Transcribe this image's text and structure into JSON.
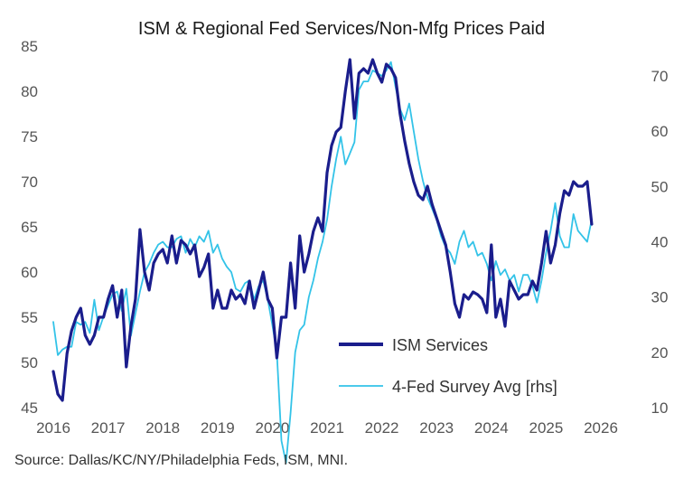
{
  "chart_data": {
    "type": "line",
    "title": "ISM & Regional Fed Services/Non-Mfg Prices Paid",
    "source": "Source: Dallas/KC/NY/Philadelphia Feds, ISM, MNI.",
    "x_ticks": [
      "2016",
      "2017",
      "2018",
      "2019",
      "2020",
      "2021",
      "2022",
      "2023",
      "2024",
      "2025",
      "2026"
    ],
    "xlim": [
      2016,
      2026
    ],
    "y_left": {
      "ticks": [
        "45",
        "50",
        "55",
        "60",
        "65",
        "70",
        "75",
        "80",
        "85"
      ],
      "ylim": [
        45,
        85
      ]
    },
    "y_right": {
      "ticks": [
        "10",
        "20",
        "30",
        "40",
        "50",
        "60",
        "70"
      ],
      "ylim": [
        10,
        75
      ]
    },
    "legend": [
      "ISM Services",
      "4-Fed Survey Avg [rhs]"
    ],
    "colors": {
      "ism": "#1a1d8c",
      "fed": "#33c3e8"
    },
    "series": [
      {
        "name": "ISM Services",
        "axis": "left",
        "x": [
          2016.0,
          2016.083,
          2016.167,
          2016.25,
          2016.333,
          2016.417,
          2016.5,
          2016.583,
          2016.667,
          2016.75,
          2016.833,
          2016.917,
          2017.0,
          2017.083,
          2017.167,
          2017.25,
          2017.333,
          2017.417,
          2017.5,
          2017.583,
          2017.667,
          2017.75,
          2017.833,
          2017.917,
          2018.0,
          2018.083,
          2018.167,
          2018.25,
          2018.333,
          2018.417,
          2018.5,
          2018.583,
          2018.667,
          2018.75,
          2018.833,
          2018.917,
          2019.0,
          2019.083,
          2019.167,
          2019.25,
          2019.333,
          2019.417,
          2019.5,
          2019.583,
          2019.667,
          2019.75,
          2019.833,
          2019.917,
          2020.0,
          2020.083,
          2020.167,
          2020.25,
          2020.333,
          2020.417,
          2020.5,
          2020.583,
          2020.667,
          2020.75,
          2020.833,
          2020.917,
          2021.0,
          2021.083,
          2021.167,
          2021.25,
          2021.333,
          2021.417,
          2021.5,
          2021.583,
          2021.667,
          2021.75,
          2021.833,
          2021.917,
          2022.0,
          2022.083,
          2022.167,
          2022.25,
          2022.333,
          2022.417,
          2022.5,
          2022.583,
          2022.667,
          2022.75,
          2022.833,
          2022.917,
          2023.0,
          2023.083,
          2023.167,
          2023.25,
          2023.333,
          2023.417,
          2023.5,
          2023.583,
          2023.667,
          2023.75,
          2023.833,
          2023.917,
          2024.0,
          2024.083,
          2024.167,
          2024.25,
          2024.333,
          2024.417,
          2024.5,
          2024.583,
          2024.667,
          2024.75,
          2024.833,
          2024.917,
          2025.0,
          2025.083,
          2025.167,
          2025.25,
          2025.333,
          2025.417,
          2025.5,
          2025.583,
          2025.667,
          2025.75,
          2025.833
        ],
        "values": [
          49.0,
          46.5,
          45.8,
          51.0,
          53.5,
          55.0,
          56.0,
          53.0,
          52.0,
          53.0,
          55.0,
          55.0,
          57.0,
          58.5,
          55.0,
          58.0,
          49.5,
          54.0,
          57.0,
          64.7,
          60.0,
          58.0,
          61.0,
          62.0,
          62.5,
          61.0,
          64.0,
          61.0,
          63.5,
          63.0,
          62.0,
          63.0,
          59.5,
          60.5,
          62.0,
          56.0,
          58.0,
          56.0,
          56.0,
          58.0,
          57.0,
          57.5,
          56.5,
          59.0,
          56.0,
          58.0,
          60.0,
          57.0,
          56.0,
          50.5,
          55.0,
          55.0,
          61.0,
          56.0,
          64.0,
          60.0,
          62.0,
          64.5,
          66.0,
          64.5,
          71.0,
          74.0,
          75.5,
          76.0,
          80.0,
          83.5,
          77.0,
          82.0,
          82.5,
          82.0,
          83.5,
          82.0,
          81.0,
          83.0,
          82.5,
          81.5,
          77.5,
          74.5,
          72.0,
          70.0,
          68.5,
          68.0,
          69.5,
          67.5,
          66.0,
          64.5,
          63.0,
          60.0,
          56.5,
          55.0,
          57.5,
          57.0,
          57.8,
          57.5,
          57.0,
          55.5,
          63.0,
          55.0,
          57.0,
          54.0,
          59.0,
          58.0,
          57.0,
          57.5,
          57.5,
          59.0,
          58.0,
          61.0,
          64.5,
          61.0,
          63.0,
          66.5,
          69.0,
          68.5,
          70.0,
          69.5,
          69.5,
          70.0,
          65.3
        ]
      },
      {
        "name": "4-Fed Survey Avg [rhs]",
        "axis": "right",
        "x": [
          2016.0,
          2016.083,
          2016.167,
          2016.25,
          2016.333,
          2016.417,
          2016.5,
          2016.583,
          2016.667,
          2016.75,
          2016.833,
          2016.917,
          2017.0,
          2017.083,
          2017.167,
          2017.25,
          2017.333,
          2017.417,
          2017.5,
          2017.583,
          2017.667,
          2017.75,
          2017.833,
          2017.917,
          2018.0,
          2018.083,
          2018.167,
          2018.25,
          2018.333,
          2018.417,
          2018.5,
          2018.583,
          2018.667,
          2018.75,
          2018.833,
          2018.917,
          2019.0,
          2019.083,
          2019.167,
          2019.25,
          2019.333,
          2019.417,
          2019.5,
          2019.583,
          2019.667,
          2019.75,
          2019.833,
          2019.917,
          2020.0,
          2020.083,
          2020.167,
          2020.25,
          2020.333,
          2020.417,
          2020.5,
          2020.583,
          2020.667,
          2020.75,
          2020.833,
          2020.917,
          2021.0,
          2021.083,
          2021.167,
          2021.25,
          2021.333,
          2021.417,
          2021.5,
          2021.583,
          2021.667,
          2021.75,
          2021.833,
          2021.917,
          2022.0,
          2022.083,
          2022.167,
          2022.25,
          2022.333,
          2022.417,
          2022.5,
          2022.583,
          2022.667,
          2022.75,
          2022.833,
          2022.917,
          2023.0,
          2023.083,
          2023.167,
          2023.25,
          2023.333,
          2023.417,
          2023.5,
          2023.583,
          2023.667,
          2023.75,
          2023.833,
          2023.917,
          2024.0,
          2024.083,
          2024.167,
          2024.25,
          2024.333,
          2024.417,
          2024.5,
          2024.583,
          2024.667,
          2024.75,
          2024.833,
          2024.917,
          2025.0,
          2025.083,
          2025.167,
          2025.25,
          2025.333,
          2025.417,
          2025.5,
          2025.583,
          2025.667,
          2025.75,
          2025.833
        ],
        "values": [
          25.5,
          19.5,
          20.5,
          21.0,
          21.0,
          25.5,
          25.0,
          25.5,
          23.5,
          29.5,
          24.0,
          26.5,
          28.5,
          30.5,
          31.0,
          27.5,
          31.5,
          23.0,
          27.0,
          31.0,
          34.5,
          36.0,
          38.0,
          39.5,
          40.0,
          39.0,
          39.0,
          40.5,
          41.0,
          38.0,
          40.5,
          39.0,
          41.0,
          40.0,
          42.0,
          38.0,
          39.5,
          37.0,
          35.5,
          34.5,
          31.5,
          31.0,
          32.5,
          33.0,
          29.5,
          32.0,
          33.0,
          29.5,
          25.0,
          20.0,
          4.0,
          0.0,
          9.0,
          20.0,
          24.0,
          25.0,
          30.0,
          33.0,
          37.0,
          40.0,
          44.0,
          50.0,
          55.0,
          59.0,
          54.0,
          56.0,
          58.0,
          67.5,
          69.0,
          69.0,
          71.0,
          70.5,
          70.0,
          71.0,
          72.5,
          68.0,
          64.0,
          62.0,
          65.0,
          60.0,
          55.0,
          51.0,
          48.0,
          46.0,
          44.0,
          41.0,
          39.0,
          38.0,
          36.0,
          40.0,
          42.0,
          39.0,
          40.0,
          37.5,
          38.0,
          36.0,
          33.0,
          36.5,
          34.0,
          35.0,
          33.0,
          34.0,
          31.0,
          34.0,
          34.0,
          32.0,
          29.0,
          33.0,
          38.0,
          42.0,
          47.0,
          41.0,
          39.0,
          39.0,
          45.0,
          42.0,
          41.0,
          40.0,
          44.0
        ]
      }
    ]
  }
}
